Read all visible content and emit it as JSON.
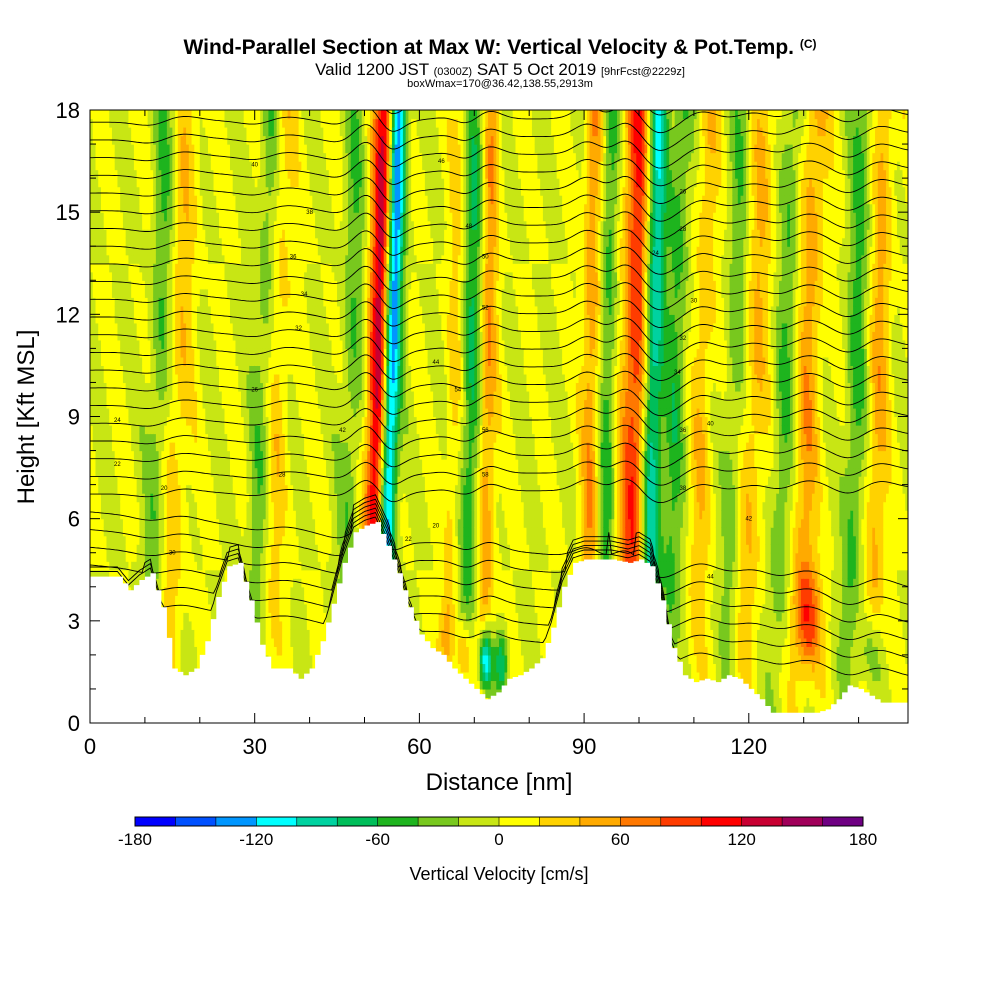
{
  "title": {
    "main": "Wind-Parallel Section at Max W: Vertical Velocity & Pot.Temp.",
    "corner_mark": "(C)",
    "valid_prefix": "Valid 1200 JST",
    "valid_utc": "(0300Z)",
    "valid_date": "SAT 5 Oct 2019",
    "forecast": "[9hrFcst@2229z]",
    "box_info": "boxWmax=170@36.42,138.55,2913m"
  },
  "chart_data": {
    "type": "heatmap",
    "xlabel": "Distance [nm]",
    "ylabel": "Height [Kft MSL]",
    "xlim": [
      0,
      149
    ],
    "ylim": [
      0,
      18
    ],
    "x_ticks": [
      0,
      30,
      60,
      90,
      120
    ],
    "y_ticks": [
      0,
      3,
      6,
      9,
      12,
      15,
      18
    ],
    "colorbar": {
      "title": "Vertical Velocity [cm/s]",
      "range": [
        -180,
        180
      ],
      "step": 20,
      "tick_labels": [
        -180,
        -120,
        -60,
        0,
        60,
        120,
        180
      ],
      "colors": [
        "#0000ff",
        "#0050ff",
        "#0096ff",
        "#00ffff",
        "#00d2a0",
        "#00be5a",
        "#1eb41e",
        "#78c81e",
        "#c8e614",
        "#ffff00",
        "#ffd200",
        "#ffaa00",
        "#ff7800",
        "#ff3c00",
        "#ff0000",
        "#c80032",
        "#a0005a",
        "#6e0082"
      ]
    },
    "terrain_kft": [
      [
        0,
        4.3
      ],
      [
        5,
        4.3
      ],
      [
        7,
        3.9
      ],
      [
        9,
        4.2
      ],
      [
        11,
        4.4
      ],
      [
        13,
        3.4
      ],
      [
        15,
        1.6
      ],
      [
        17,
        1.4
      ],
      [
        19,
        1.6
      ],
      [
        21,
        2.4
      ],
      [
        23,
        3.7
      ],
      [
        25,
        4.6
      ],
      [
        27,
        4.7
      ],
      [
        29,
        3.6
      ],
      [
        31,
        2.3
      ],
      [
        33,
        1.6
      ],
      [
        36,
        1.6
      ],
      [
        38,
        1.3
      ],
      [
        40,
        1.6
      ],
      [
        42,
        2.4
      ],
      [
        44,
        3.5
      ],
      [
        46,
        4.7
      ],
      [
        48,
        5.6
      ],
      [
        50,
        5.8
      ],
      [
        52,
        5.9
      ],
      [
        54,
        5.2
      ],
      [
        56,
        4.4
      ],
      [
        58,
        3.4
      ],
      [
        60,
        2.6
      ],
      [
        62,
        2.2
      ],
      [
        64,
        2.0
      ],
      [
        66,
        1.6
      ],
      [
        68,
        1.3
      ],
      [
        70,
        1.0
      ],
      [
        72,
        0.7
      ],
      [
        74,
        0.9
      ],
      [
        76,
        1.3
      ],
      [
        78,
        1.4
      ],
      [
        80,
        1.6
      ],
      [
        82,
        1.9
      ],
      [
        84,
        2.8
      ],
      [
        86,
        4.0
      ],
      [
        88,
        4.7
      ],
      [
        90,
        4.8
      ],
      [
        93,
        4.8
      ],
      [
        95,
        4.8
      ],
      [
        98,
        4.7
      ],
      [
        100,
        4.8
      ],
      [
        102,
        4.6
      ],
      [
        104,
        3.6
      ],
      [
        106,
        2.2
      ],
      [
        108,
        1.4
      ],
      [
        110,
        1.2
      ],
      [
        112,
        1.3
      ],
      [
        114,
        1.2
      ],
      [
        116,
        1.4
      ],
      [
        118,
        1.3
      ],
      [
        120,
        1.0
      ],
      [
        122,
        0.7
      ],
      [
        124,
        0.3
      ],
      [
        126,
        0.3
      ],
      [
        130,
        0.3
      ],
      [
        132,
        0.3
      ],
      [
        134,
        0.4
      ],
      [
        136,
        0.7
      ],
      [
        138,
        1.1
      ],
      [
        140,
        1.0
      ],
      [
        142,
        0.8
      ],
      [
        144,
        0.6
      ],
      [
        146,
        0.6
      ],
      [
        149,
        0.6
      ]
    ],
    "updrafts": [
      {
        "x": 52,
        "w": 2.0,
        "v": 140,
        "tilt": 0.05
      },
      {
        "x": 99,
        "w": 2.6,
        "v": 100,
        "tilt": 0.03
      },
      {
        "x": 72,
        "w": 1.6,
        "v": 60,
        "tilt": 0.03
      },
      {
        "x": 91,
        "w": 1.6,
        "v": 55,
        "tilt": 0.02
      },
      {
        "x": 130,
        "w": 2.4,
        "v": 50,
        "tilt": 0.06
      },
      {
        "x": 15,
        "w": 2.5,
        "v": 35,
        "tilt": 0.08
      },
      {
        "x": 33,
        "w": 2.5,
        "v": 35,
        "tilt": 0.06
      },
      {
        "x": 120,
        "w": 2.5,
        "v": 40,
        "tilt": 0.08
      },
      {
        "x": 143,
        "w": 2.0,
        "v": 45,
        "tilt": 0.05
      },
      {
        "x": 111,
        "w": 2.0,
        "v": 35,
        "tilt": 0.05
      },
      {
        "x": 66,
        "w": 1.6,
        "v": 30,
        "tilt": 0.04
      }
    ],
    "downdrafts": [
      {
        "x": 54,
        "w": 1.6,
        "v": -160,
        "tilt": 0.06
      },
      {
        "x": 102,
        "w": 1.8,
        "v": -110,
        "tilt": 0.04
      },
      {
        "x": 69,
        "w": 2.0,
        "v": -60,
        "tilt": 0.04
      },
      {
        "x": 12,
        "w": 2.0,
        "v": -40,
        "tilt": 0.06
      },
      {
        "x": 31,
        "w": 2.0,
        "v": -45,
        "tilt": 0.06
      },
      {
        "x": 106,
        "w": 2.0,
        "v": -45,
        "tilt": 0.05
      },
      {
        "x": 126,
        "w": 2.0,
        "v": -40,
        "tilt": 0.06
      },
      {
        "x": 94,
        "w": 1.5,
        "v": -50,
        "tilt": 0.03
      },
      {
        "x": 139,
        "w": 2.0,
        "v": -45,
        "tilt": 0.05
      },
      {
        "x": 47,
        "w": 2.0,
        "v": -35,
        "tilt": 0.05
      },
      {
        "x": 117,
        "w": 2.0,
        "v": -35,
        "tilt": 0.05
      }
    ],
    "surface_features": [
      {
        "x": 72,
        "y": 1.8,
        "v": -140,
        "w": 1.2,
        "h": 0.9
      },
      {
        "x": 75,
        "y": 1.8,
        "v": -70,
        "w": 1.2,
        "h": 0.9
      },
      {
        "x": 68,
        "y": 2.0,
        "v": 70,
        "w": 1.4,
        "h": 1.0
      },
      {
        "x": 65,
        "y": 2.6,
        "v": 40,
        "w": 1.4,
        "h": 1.2
      },
      {
        "x": 131,
        "y": 3.0,
        "v": 70,
        "w": 2.5,
        "h": 1.5
      },
      {
        "x": 142,
        "y": 2.0,
        "v": -45,
        "w": 2.0,
        "h": 1.2
      }
    ],
    "isentrope_labels": [
      "20",
      "22",
      "24",
      "26",
      "28",
      "30",
      "32",
      "34",
      "36",
      "38",
      "40",
      "42",
      "44",
      "46",
      "48",
      "50",
      "52",
      "54",
      "56",
      "58"
    ]
  }
}
